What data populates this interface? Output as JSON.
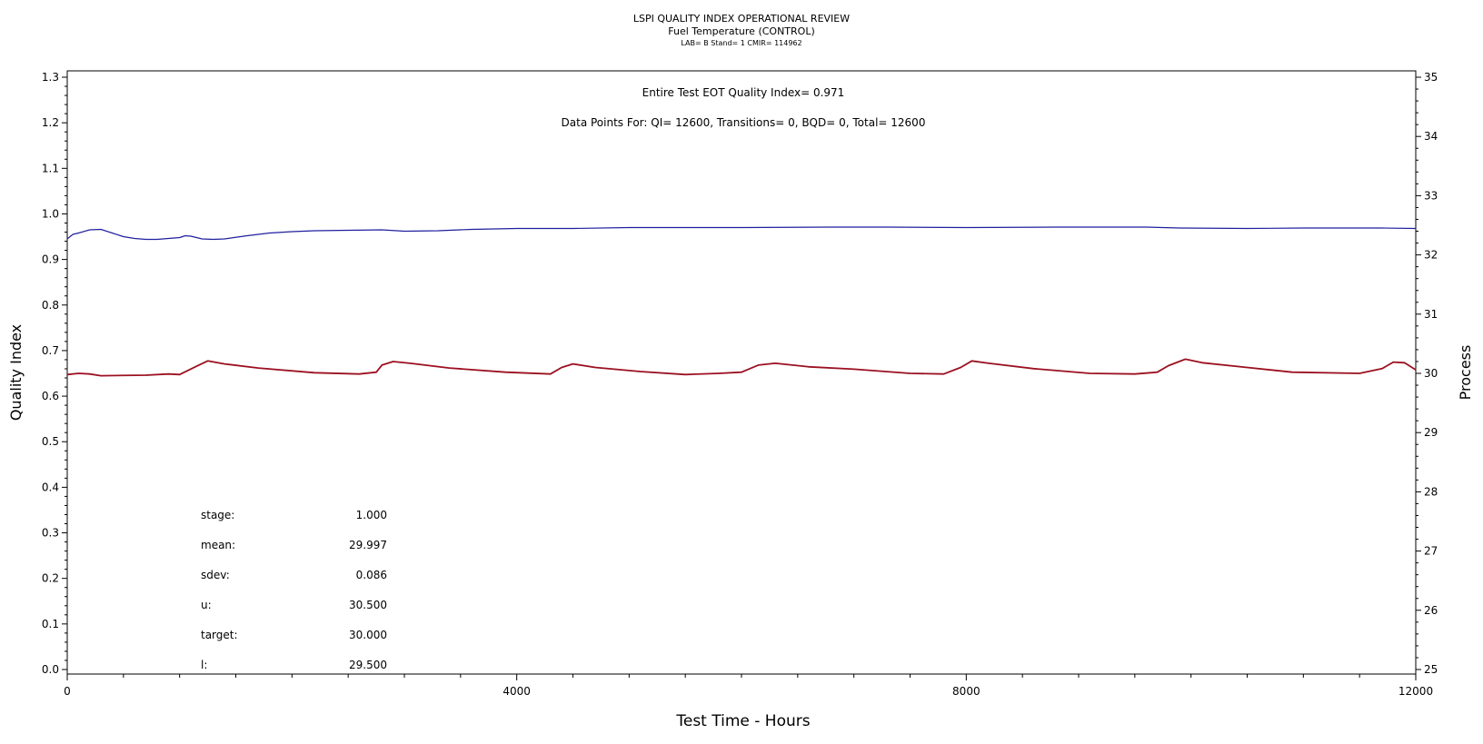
{
  "header": {
    "title": "LSPI QUALITY INDEX OPERATIONAL REVIEW",
    "subtitle": "Fuel Temperature (CONTROL)",
    "meta": "LAB= B Stand= 1 CMIR= 114962"
  },
  "annotations": {
    "eot": "Entire Test EOT Quality Index=   0.971",
    "points": "Data Points For: QI= 12600, Transitions=     0, BQD=     0, Total= 12600"
  },
  "stats": [
    {
      "label": "stage:",
      "value": "1.000"
    },
    {
      "label": "mean:",
      "value": "29.997"
    },
    {
      "label": "sdev:",
      "value": "0.086"
    },
    {
      "label": "u:",
      "value": "30.500"
    },
    {
      "label": "target:",
      "value": "30.000"
    },
    {
      "label": "l:",
      "value": "29.500"
    }
  ],
  "chart_data": {
    "type": "line",
    "xlabel": "Test Time - Hours",
    "ylabel": "Quality Index",
    "y2label": "Process",
    "xlim": [
      0,
      12000
    ],
    "ylim": [
      0.0,
      1.3
    ],
    "y2lim": [
      25,
      35
    ],
    "x_ticks": [
      "0",
      "4000",
      "8000",
      "12000"
    ],
    "y_ticks": [
      "0.0",
      "0.1",
      "0.2",
      "0.3",
      "0.4",
      "0.5",
      "0.6",
      "0.7",
      "0.8",
      "0.9",
      "1.0",
      "1.1",
      "1.2",
      "1.3"
    ],
    "y2_ticks": [
      "25",
      "26",
      "27",
      "28",
      "29",
      "30",
      "31",
      "32",
      "33",
      "34",
      "35"
    ],
    "colors": {
      "quality_index": "#1f1f9f",
      "process": "#9b1020"
    },
    "series": [
      {
        "axis": "left",
        "points": [
          [
            0,
            0.945
          ],
          [
            50,
            0.955
          ],
          [
            100,
            0.958
          ],
          [
            200,
            0.965
          ],
          [
            300,
            0.966
          ],
          [
            400,
            0.958
          ],
          [
            500,
            0.95
          ],
          [
            600,
            0.946
          ],
          [
            700,
            0.944
          ],
          [
            800,
            0.944
          ],
          [
            1000,
            0.948
          ],
          [
            1050,
            0.952
          ],
          [
            1100,
            0.951
          ],
          [
            1200,
            0.945
          ],
          [
            1300,
            0.944
          ],
          [
            1400,
            0.945
          ],
          [
            1600,
            0.952
          ],
          [
            1800,
            0.958
          ],
          [
            2000,
            0.961
          ],
          [
            2200,
            0.963
          ],
          [
            2500,
            0.964
          ],
          [
            2800,
            0.965
          ],
          [
            3000,
            0.962
          ],
          [
            3300,
            0.963
          ],
          [
            3600,
            0.966
          ],
          [
            4000,
            0.968
          ],
          [
            4500,
            0.968
          ],
          [
            5000,
            0.97
          ],
          [
            6000,
            0.97
          ],
          [
            6800,
            0.971
          ],
          [
            7300,
            0.971
          ],
          [
            8000,
            0.97
          ],
          [
            8800,
            0.971
          ],
          [
            9600,
            0.971
          ],
          [
            9900,
            0.969
          ],
          [
            10500,
            0.968
          ],
          [
            11000,
            0.969
          ],
          [
            11700,
            0.969
          ],
          [
            12000,
            0.968
          ]
        ]
      },
      {
        "axis": "right",
        "points": [
          [
            0,
            29.98
          ],
          [
            100,
            30.0
          ],
          [
            200,
            29.99
          ],
          [
            300,
            29.96
          ],
          [
            700,
            29.97
          ],
          [
            900,
            29.99
          ],
          [
            1000,
            29.98
          ],
          [
            1150,
            30.12
          ],
          [
            1250,
            30.21
          ],
          [
            1400,
            30.16
          ],
          [
            1700,
            30.09
          ],
          [
            2200,
            30.01
          ],
          [
            2600,
            29.99
          ],
          [
            2750,
            30.02
          ],
          [
            2800,
            30.14
          ],
          [
            2900,
            30.2
          ],
          [
            3050,
            30.17
          ],
          [
            3400,
            30.09
          ],
          [
            3900,
            30.02
          ],
          [
            4300,
            29.99
          ],
          [
            4400,
            30.1
          ],
          [
            4500,
            30.16
          ],
          [
            4700,
            30.1
          ],
          [
            5100,
            30.03
          ],
          [
            5500,
            29.98
          ],
          [
            5800,
            30.0
          ],
          [
            6000,
            30.02
          ],
          [
            6150,
            30.14
          ],
          [
            6300,
            30.17
          ],
          [
            6600,
            30.11
          ],
          [
            7000,
            30.07
          ],
          [
            7500,
            30.0
          ],
          [
            7800,
            29.99
          ],
          [
            7950,
            30.1
          ],
          [
            8050,
            30.21
          ],
          [
            8200,
            30.17
          ],
          [
            8600,
            30.08
          ],
          [
            9100,
            30.0
          ],
          [
            9500,
            29.99
          ],
          [
            9700,
            30.02
          ],
          [
            9800,
            30.13
          ],
          [
            9950,
            30.24
          ],
          [
            10100,
            30.18
          ],
          [
            10500,
            30.1
          ],
          [
            10900,
            30.02
          ],
          [
            11500,
            30.0
          ],
          [
            11700,
            30.08
          ],
          [
            11800,
            30.19
          ],
          [
            11900,
            30.18
          ],
          [
            12000,
            30.06
          ]
        ]
      }
    ]
  }
}
